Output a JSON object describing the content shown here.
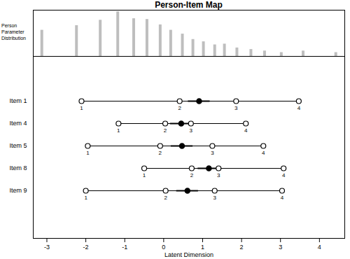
{
  "chart_data": {
    "type": "person_item_map",
    "title": "Person-Item Map",
    "distribution_label": "Person Parameter Distribution",
    "x_label": "Latent Dimension",
    "xlim": [
      -3.35,
      4.65
    ],
    "xticks": [
      -3,
      -2,
      -1,
      0,
      1,
      2,
      3,
      4
    ],
    "person_distribution": {
      "x": [
        -3.13,
        -2.24,
        -1.63,
        -1.18,
        -0.77,
        -0.43,
        -0.09,
        0.18,
        0.48,
        0.75,
        1.02,
        1.31,
        1.56,
        1.88,
        2.24,
        2.59,
        3.02,
        3.58,
        4.42
      ],
      "counts": [
        34,
        40,
        47,
        58,
        49,
        48,
        41,
        34,
        29,
        22,
        19,
        15,
        16,
        11,
        9,
        7,
        5,
        7,
        5
      ],
      "ylim": [
        0,
        60
      ],
      "color": "#bebebe"
    },
    "tick_labels": "x",
    "threshold_labels": [
      "1",
      "2",
      "3",
      "4"
    ],
    "items": [
      {
        "name": "Item 1",
        "thresholds": [
          -2.11,
          0.41,
          1.86,
          3.47
        ],
        "location": 0.91
      },
      {
        "name": "Item 4",
        "thresholds": [
          -1.16,
          0.04,
          0.7,
          2.11
        ],
        "location": 0.45
      },
      {
        "name": "Item 5",
        "thresholds": [
          -1.95,
          -0.09,
          1.25,
          2.56
        ],
        "location": 0.47
      },
      {
        "name": "Item 8",
        "thresholds": [
          -0.5,
          0.72,
          1.41,
          3.08
        ],
        "location": 1.16
      },
      {
        "name": "Item 9",
        "thresholds": [
          -2.0,
          0.05,
          1.31,
          3.04
        ],
        "location": 0.61
      }
    ],
    "color": "#000000"
  }
}
